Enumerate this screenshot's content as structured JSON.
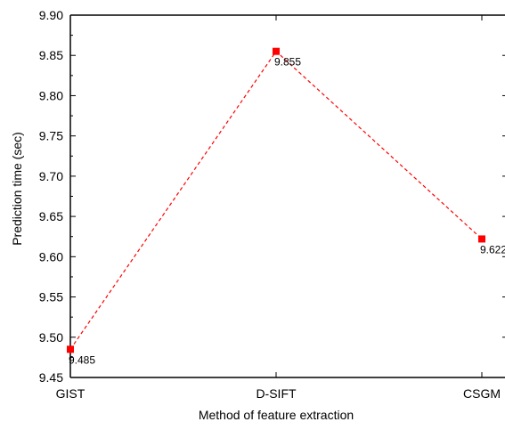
{
  "chart_data": {
    "type": "line",
    "categories": [
      "GIST",
      "D-SIFT",
      "CSGM"
    ],
    "series": [
      {
        "values": [
          9.485,
          9.855,
          9.622
        ]
      }
    ],
    "data_labels": [
      "9.485",
      "9.855",
      "9.622"
    ],
    "y_ticks": [
      "9.45",
      "9.50",
      "9.55",
      "9.60",
      "9.65",
      "9.70",
      "9.75",
      "9.80",
      "9.85",
      "9.90"
    ],
    "ylim": [
      9.45,
      9.9
    ],
    "xlabel": "Method of feature extraction",
    "ylabel": "Prediction time (sec)",
    "line_style": "dashed",
    "marker": "square",
    "grid": false,
    "colors": {
      "series": "#ff0000",
      "axis": "#000000"
    }
  }
}
